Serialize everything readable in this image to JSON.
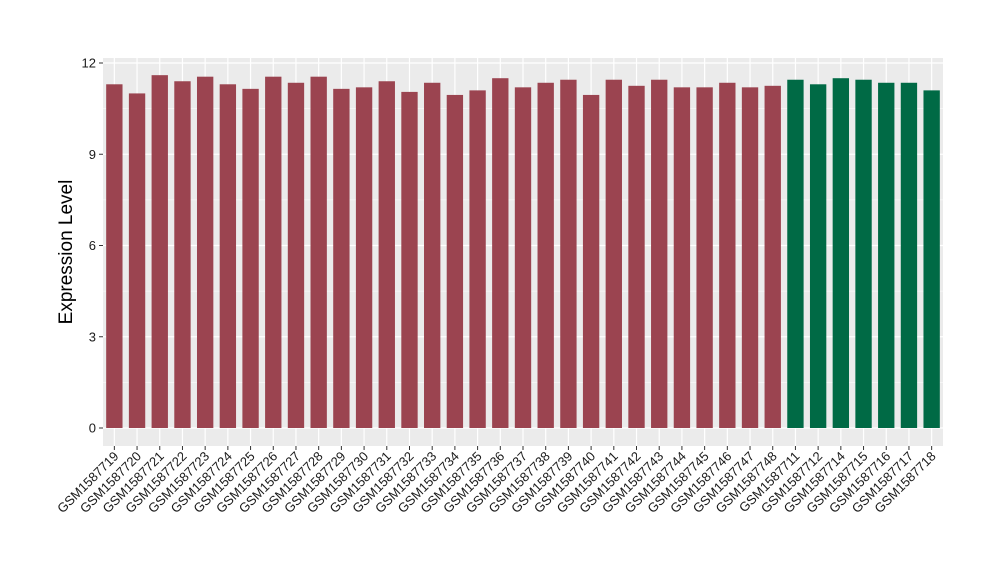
{
  "chart_data": {
    "type": "bar",
    "title": "",
    "xlabel": "",
    "ylabel": "Expression Level",
    "ylim": [
      0,
      12.5
    ],
    "yticks": [
      0,
      3,
      6,
      9,
      12
    ],
    "grid": true,
    "legend": "none",
    "colors": {
      "group_a": "#9b4450",
      "group_b": "#006a45",
      "panel": "#ebebeb",
      "gridline": "#ffffff"
    },
    "categories": [
      "GSM1587719",
      "GSM1587720",
      "GSM1587721",
      "GSM1587722",
      "GSM1587723",
      "GSM1587724",
      "GSM1587725",
      "GSM1587726",
      "GSM1587727",
      "GSM1587728",
      "GSM1587729",
      "GSM1587730",
      "GSM1587731",
      "GSM1587732",
      "GSM1587733",
      "GSM1587734",
      "GSM1587735",
      "GSM1587736",
      "GSM1587737",
      "GSM1587738",
      "GSM1587739",
      "GSM1587740",
      "GSM1587741",
      "GSM1587742",
      "GSM1587743",
      "GSM1587744",
      "GSM1587745",
      "GSM1587746",
      "GSM1587747",
      "GSM1587748",
      "GSM1587711",
      "GSM1587712",
      "GSM1587714",
      "GSM1587715",
      "GSM1587716",
      "GSM1587717",
      "GSM1587718"
    ],
    "values": [
      11.3,
      11.0,
      11.6,
      11.4,
      11.55,
      11.3,
      11.15,
      11.55,
      11.35,
      11.55,
      11.15,
      11.2,
      11.4,
      11.05,
      11.35,
      10.95,
      11.1,
      11.5,
      11.2,
      11.35,
      11.45,
      10.95,
      11.45,
      11.25,
      11.45,
      11.2,
      11.2,
      11.35,
      11.2,
      11.25,
      11.45,
      11.3,
      11.5,
      11.45,
      11.35,
      11.35,
      11.1
    ],
    "groups": [
      "a",
      "a",
      "a",
      "a",
      "a",
      "a",
      "a",
      "a",
      "a",
      "a",
      "a",
      "a",
      "a",
      "a",
      "a",
      "a",
      "a",
      "a",
      "a",
      "a",
      "a",
      "a",
      "a",
      "a",
      "a",
      "a",
      "a",
      "a",
      "a",
      "a",
      "b",
      "b",
      "b",
      "b",
      "b",
      "b",
      "b"
    ]
  }
}
